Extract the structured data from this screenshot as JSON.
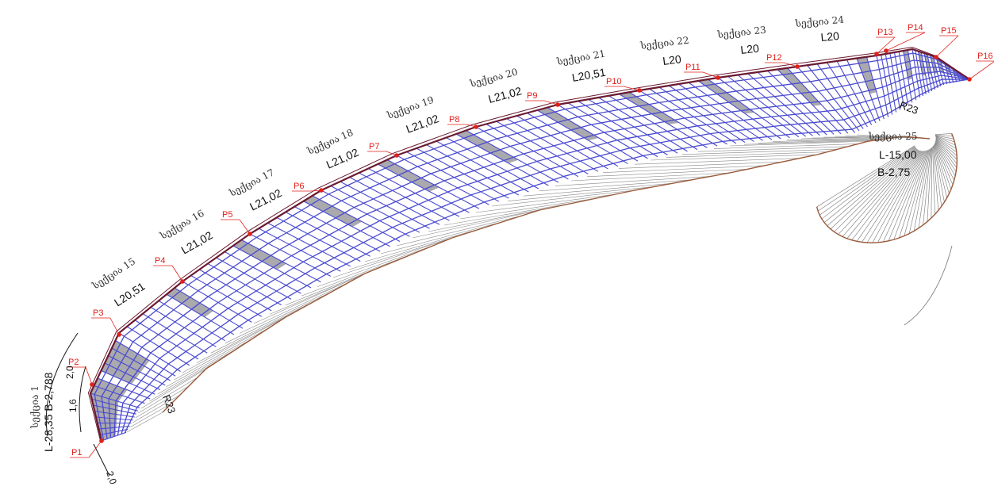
{
  "points": [
    "P1",
    "P2",
    "P3",
    "P4",
    "P5",
    "P6",
    "P7",
    "P8",
    "P9",
    "P10",
    "P11",
    "P12",
    "P13",
    "P14",
    "P15",
    "P16"
  ],
  "segments": [
    {
      "name": "სექცია 15",
      "length": "L20,51"
    },
    {
      "name": "სექცია 16",
      "length": "L21,02"
    },
    {
      "name": "სექცია 17",
      "length": "L21,02"
    },
    {
      "name": "სექცია 18",
      "length": "L21,02"
    },
    {
      "name": "სექცია 19",
      "length": "L21,02"
    },
    {
      "name": "სექცია 20",
      "length": "L21,02"
    },
    {
      "name": "სექცია 21",
      "length": "L20,51"
    },
    {
      "name": "სექცია 22",
      "length": "L20"
    },
    {
      "name": "სექცია 23",
      "length": "L20"
    },
    {
      "name": "სექცია 24",
      "length": "L20"
    }
  ],
  "section1": {
    "name": "სექცია 1",
    "params": "L-28,35  B-2,788"
  },
  "section25": {
    "name": "სექცია 25",
    "length": "L-15,00",
    "width": "B-2,75"
  },
  "radius_left": "R23",
  "radius_right": "R23",
  "dim_labels": [
    "2,0",
    "1,6",
    "2,0"
  ],
  "colors": {
    "grid": "#4a4ad0",
    "edge": "#6b1a30",
    "outline": "#9a5a3a",
    "points": "#e0201a",
    "fill": "#9a9aa0"
  }
}
